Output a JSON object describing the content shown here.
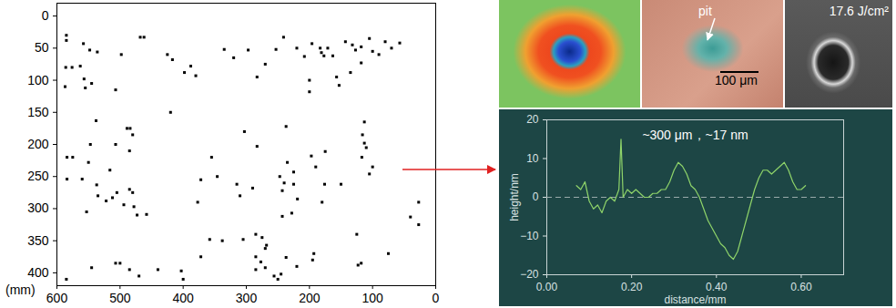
{
  "chart_data": [
    {
      "type": "scatter",
      "x": [
        585,
        585,
        558,
        548,
        536,
        586,
        576,
        563,
        557,
        587,
        555,
        545,
        507,
        498,
        468,
        462,
        425,
        417,
        398,
        388,
        380,
        335,
        320,
        297,
        283,
        270,
        253,
        241,
        220,
        208,
        196,
        183,
        181,
        177,
        171,
        163,
        143,
        132,
        127,
        118,
        105,
        100,
        90,
        80,
        70,
        57,
        118,
        135,
        200,
        200,
        157,
        153,
        420,
        538,
        489,
        484,
        480,
        507,
        547,
        485,
        575,
        237,
        113,
        113,
        110,
        116,
        303,
        283,
        235,
        225,
        197,
        175,
        117,
        355,
        346,
        372,
        377,
        315,
        310,
        290,
        247,
        243,
        240,
        225,
        219,
        176,
        150,
        180,
        228,
        243,
        190,
        100,
        105,
        584,
        584,
        560,
        550,
        516,
        537,
        535,
        522,
        512,
        505,
        485,
        480,
        494,
        478,
        553,
        473,
        458,
        27,
        27,
        40,
        358,
        338,
        125,
        285,
        275,
        268,
        270,
        305,
        545,
        507,
        500,
        485,
        470,
        440,
        403,
        400,
        372,
        285,
        277,
        285,
        270,
        256,
        250,
        245,
        237,
        195,
        193,
        123,
        118,
        75,
        585,
        220
      ],
      "values": [
        30,
        38,
        43,
        53,
        56,
        80,
        80,
        78,
        98,
        110,
        112,
        105,
        115,
        60,
        33,
        33,
        60,
        68,
        88,
        78,
        93,
        52,
        65,
        53,
        95,
        75,
        52,
        33,
        50,
        63,
        43,
        50,
        57,
        62,
        50,
        62,
        40,
        45,
        53,
        48,
        35,
        55,
        60,
        40,
        50,
        42,
        73,
        88,
        100,
        118,
        95,
        108,
        150,
        163,
        175,
        175,
        185,
        200,
        200,
        210,
        220,
        172,
        165,
        198,
        205,
        185,
        180,
        203,
        228,
        243,
        218,
        211,
        220,
        220,
        250,
        255,
        290,
        262,
        280,
        268,
        250,
        272,
        260,
        262,
        285,
        262,
        262,
        290,
        307,
        312,
        235,
        235,
        246,
        220,
        254,
        254,
        228,
        240,
        263,
        280,
        288,
        283,
        275,
        270,
        275,
        294,
        297,
        305,
        310,
        309,
        290,
        325,
        313,
        348,
        350,
        340,
        340,
        345,
        357,
        362,
        348,
        392,
        385,
        385,
        395,
        405,
        395,
        397,
        410,
        375,
        375,
        383,
        395,
        392,
        405,
        410,
        402,
        376,
        380,
        370,
        388,
        385,
        370,
        410,
        390
      ],
      "xlim": [
        600,
        0
      ],
      "xticks": [
        600,
        500,
        400,
        300,
        200,
        100,
        0
      ],
      "ylim": [
        420,
        -20
      ],
      "yticks": [
        0,
        50,
        100,
        150,
        200,
        250,
        300,
        350,
        400
      ],
      "ylabel": "(mm)",
      "color": "#000000",
      "marker": "square"
    },
    {
      "type": "line",
      "x": [
        0.07,
        0.08,
        0.09,
        0.1,
        0.11,
        0.12,
        0.13,
        0.14,
        0.15,
        0.16,
        0.17,
        0.175,
        0.18,
        0.19,
        0.2,
        0.21,
        0.22,
        0.23,
        0.24,
        0.25,
        0.26,
        0.27,
        0.28,
        0.29,
        0.3,
        0.31,
        0.32,
        0.33,
        0.34,
        0.35,
        0.36,
        0.37,
        0.38,
        0.39,
        0.4,
        0.41,
        0.42,
        0.43,
        0.44,
        0.45,
        0.46,
        0.47,
        0.48,
        0.49,
        0.5,
        0.51,
        0.52,
        0.53,
        0.54,
        0.55,
        0.56,
        0.57,
        0.58,
        0.59,
        0.6,
        0.61
      ],
      "values": [
        3,
        2,
        4,
        -1,
        -3,
        -2,
        -4,
        -1,
        0,
        -1,
        2,
        15,
        0,
        2,
        1,
        2,
        1,
        0,
        0,
        1,
        1,
        2,
        2,
        4,
        7,
        9,
        8,
        6,
        3,
        2,
        0,
        -3,
        -6,
        -8,
        -10,
        -12,
        -13,
        -15,
        -16,
        -14,
        -10,
        -6,
        -2,
        2,
        5,
        7,
        7,
        6,
        7,
        8,
        9,
        7,
        4,
        2,
        2,
        3
      ],
      "xlim": [
        0,
        0.7
      ],
      "xticks": [
        0,
        0.2,
        0.4,
        0.6
      ],
      "ylim": [
        -20,
        20
      ],
      "yticks": [
        -20,
        -10,
        0,
        10,
        20
      ],
      "xlabel": "distance/mm",
      "ylabel": "height/nm",
      "annotation": "~300 μm，~17 nm",
      "reference_line": 0,
      "color": "#8fd46a"
    }
  ],
  "image_panels": {
    "pit_label": "pit",
    "scale_bar": "100 μm",
    "fluence": "17.6 J/cm²"
  }
}
